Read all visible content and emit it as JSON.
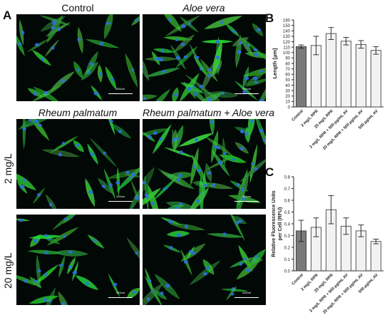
{
  "panel_letters": {
    "a": "A",
    "b": "B",
    "c": "C"
  },
  "micrographs": {
    "column_titles": [
      "Control",
      "Aloe vera",
      "Rheum palmatum",
      "Rheum palmatum + Aloe vera"
    ],
    "row_labels": [
      "2 mg/L",
      "20 mg/L"
    ],
    "scale_bar_label": "100um",
    "fluorescence_colors": {
      "cytoskeleton": "#35c83c",
      "nuclei": "#2c6fe0"
    }
  },
  "colors": {
    "control_bar": "#7a7a7a",
    "treatment_bar": "#f2f2f2",
    "bar_edge": "#333333"
  },
  "chart_data": [
    {
      "type": "bar",
      "panel": "B",
      "title": "",
      "xlabel": "",
      "ylabel": "Length [µm]",
      "ylim": [
        0,
        160
      ],
      "yticks": [
        0,
        10,
        20,
        30,
        40,
        50,
        60,
        70,
        80,
        90,
        100,
        110,
        120,
        130,
        140,
        150,
        160
      ],
      "categories": [
        "Control",
        "2 mg/L RPR",
        "20 mg/L RPR",
        "2 mg/L RPR + 500 µg/mL AV",
        "20 mg/L RPR + 500 µg/mL AV",
        "500 µg/mL AV"
      ],
      "values": [
        111,
        113,
        135,
        121,
        115,
        104
      ],
      "errors": [
        3,
        17,
        11,
        7,
        7,
        7
      ],
      "grid": false,
      "legend": "none"
    },
    {
      "type": "bar",
      "panel": "C",
      "title": "",
      "xlabel": "",
      "ylabel": "Relative Fluorescence Units per Cell (RFU)",
      "ylabel_lines": [
        "Relative Fluorescence Units",
        "per Cell (RFU)"
      ],
      "ylim": [
        0,
        0.8
      ],
      "yticks": [
        "0.0",
        "0.1",
        "0.2",
        "0.3",
        "0.4",
        "0.5",
        "0.6",
        "0.7",
        "0.8"
      ],
      "categories": [
        "Control",
        "2 mg/L RPR",
        "20 mg/L RPR",
        "2 mg/L RPR + 500 µg/mL AV",
        "20 mg/L RPR + 500 µg/mL AV",
        "500 µg/mL AV"
      ],
      "values": [
        0.34,
        0.37,
        0.52,
        0.38,
        0.34,
        0.25
      ],
      "errors": [
        0.09,
        0.08,
        0.12,
        0.07,
        0.05,
        0.02
      ],
      "grid": false,
      "legend": "none"
    }
  ]
}
